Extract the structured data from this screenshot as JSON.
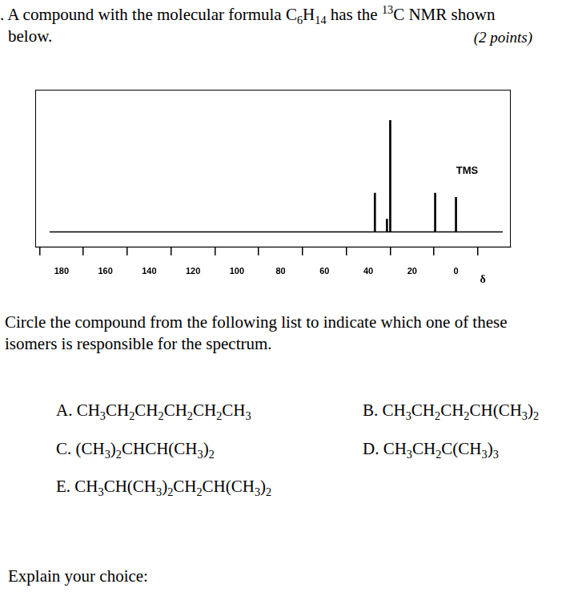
{
  "question": {
    "text": [
      {
        "t": ". A compound with the molecular formula C"
      },
      {
        "sub": "6"
      },
      {
        "t": "H"
      },
      {
        "sub": "14"
      },
      {
        "t": " has the "
      },
      {
        "sup": "13"
      },
      {
        "t": "C NMR shown"
      }
    ],
    "text_line2": "below.",
    "points": "(2 points)"
  },
  "chart_data": {
    "type": "bar",
    "x": [
      37,
      31.5,
      30,
      9.5,
      0
    ],
    "values": [
      47,
      15,
      137,
      47,
      42
    ],
    "color": "#000000",
    "xlim": [
      192,
      -25
    ],
    "xticks": [
      180,
      160,
      140,
      120,
      100,
      80,
      60,
      40,
      20,
      0
    ],
    "ylim": [
      -20,
      175
    ],
    "x_label": "δ",
    "annotations": [
      {
        "text": "TMS",
        "x": 0
      }
    ],
    "tick_labels": "x",
    "grid": false
  },
  "instruction": [
    "Circle the compound from the following list to indicate which one of these",
    "isomers is responsible for the spectrum."
  ],
  "options": [
    {
      "letter": "A.",
      "formula": "CH3CH2CH2CH2CH2CH3"
    },
    {
      "letter": "B.",
      "formula": "CH3CH2CH2CH(CH3)2"
    },
    {
      "letter": "C.",
      "formula": "(CH3)2CHCH(CH3)2"
    },
    {
      "letter": "D.",
      "formula": "CH3CH2C(CH3)3"
    },
    {
      "letter": "E.",
      "formula": "CH3CH(CH3)2CH2CH(CH3)2"
    }
  ],
  "prompt": "Explain your choice:"
}
